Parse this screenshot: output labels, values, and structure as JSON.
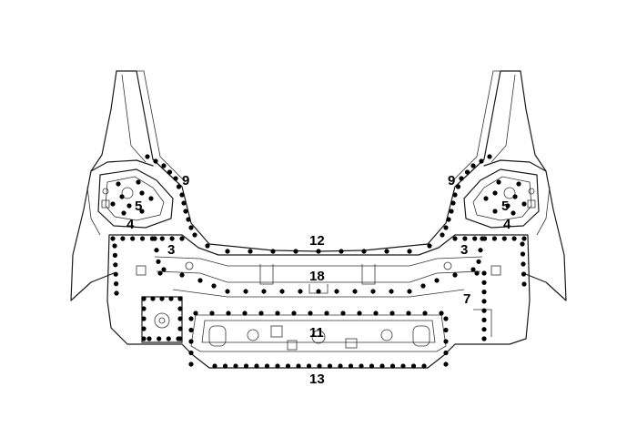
{
  "labels": {
    "l9_left": "9",
    "l9_right": "9",
    "l5_left": "5",
    "l5_right": "5",
    "l4_left": "4",
    "l4_right": "4",
    "l3_left": "3",
    "l3_right": "3",
    "l12": "12",
    "l18": "18",
    "l7": "7",
    "l11": "11",
    "l13": "13"
  },
  "colors": {
    "line": "#1a1a1a",
    "weld_point": "#000000",
    "background": "#ffffff"
  }
}
